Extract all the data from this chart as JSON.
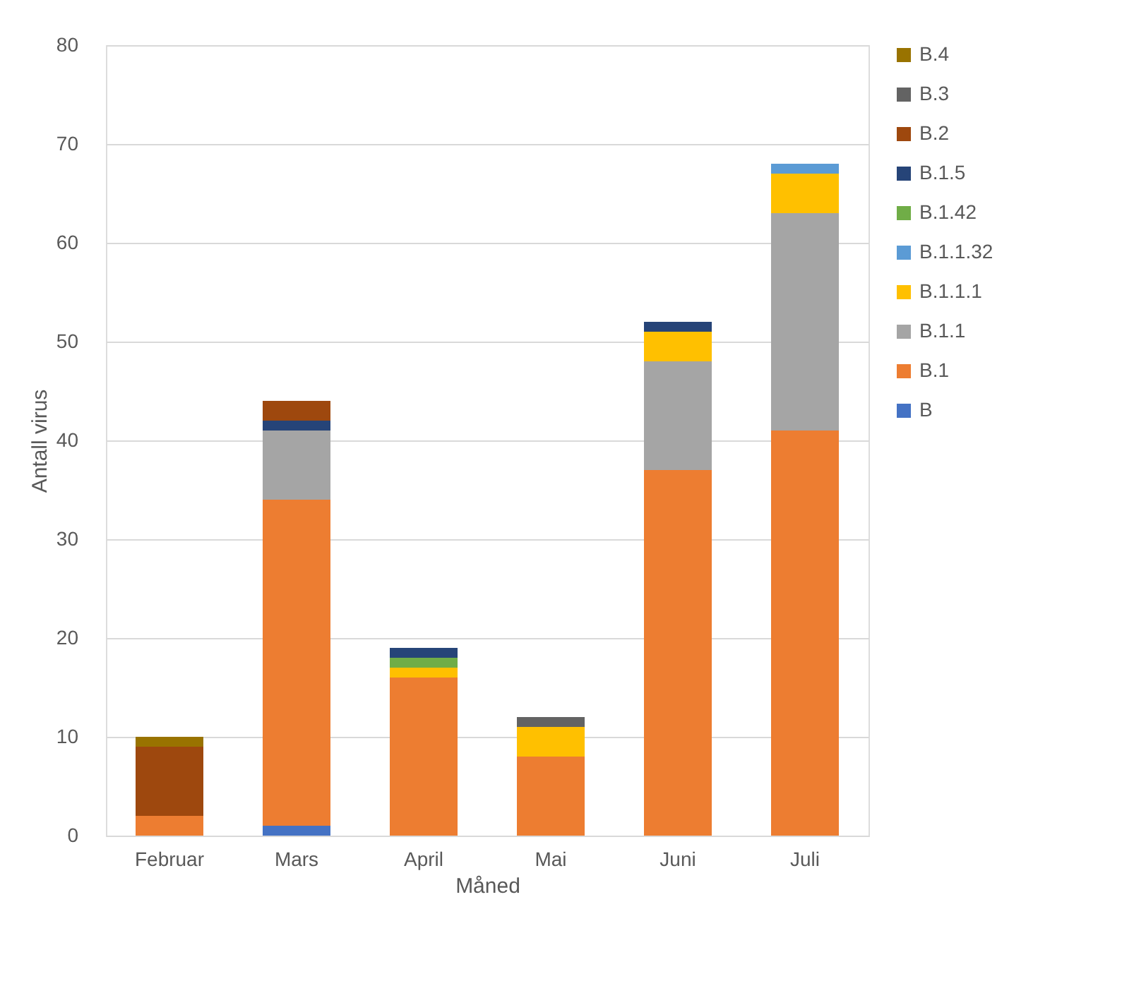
{
  "chart_data": {
    "type": "bar",
    "stacked": true,
    "xlabel": "Måned",
    "ylabel": "Antall virus",
    "categories": [
      "Februar",
      "Mars",
      "April",
      "Mai",
      "Juni",
      "Juli"
    ],
    "series": [
      {
        "name": "B",
        "color": "#4472c4",
        "values": [
          null,
          1,
          null,
          null,
          null,
          null
        ]
      },
      {
        "name": "B.1",
        "color": "#ed7d31",
        "values": [
          2,
          33,
          16,
          8,
          37,
          41
        ]
      },
      {
        "name": "B.1.1",
        "color": "#a5a5a5",
        "values": [
          null,
          7,
          null,
          null,
          11,
          22
        ]
      },
      {
        "name": "B.1.1.1",
        "color": "#ffc000",
        "values": [
          null,
          null,
          1,
          3,
          3,
          4
        ]
      },
      {
        "name": "B.1.1.32",
        "color": "#5b9bd5",
        "values": [
          null,
          null,
          null,
          null,
          null,
          1
        ]
      },
      {
        "name": "B.1.42",
        "color": "#70ad47",
        "values": [
          null,
          null,
          1,
          null,
          null,
          null
        ]
      },
      {
        "name": "B.1.5",
        "color": "#264478",
        "values": [
          null,
          1,
          1,
          null,
          1,
          null
        ]
      },
      {
        "name": "B.2",
        "color": "#9e480e",
        "values": [
          7,
          2,
          null,
          null,
          null,
          null
        ]
      },
      {
        "name": "B.3",
        "color": "#636363",
        "values": [
          null,
          null,
          null,
          1,
          null,
          null
        ]
      },
      {
        "name": "B.4",
        "color": "#997300",
        "values": [
          1,
          null,
          null,
          null,
          null,
          null
        ]
      }
    ],
    "ylim": [
      0,
      80
    ],
    "yticks": [
      0,
      10,
      20,
      30,
      40,
      50,
      60,
      70,
      80
    ],
    "grid": "y",
    "legend": "right"
  }
}
